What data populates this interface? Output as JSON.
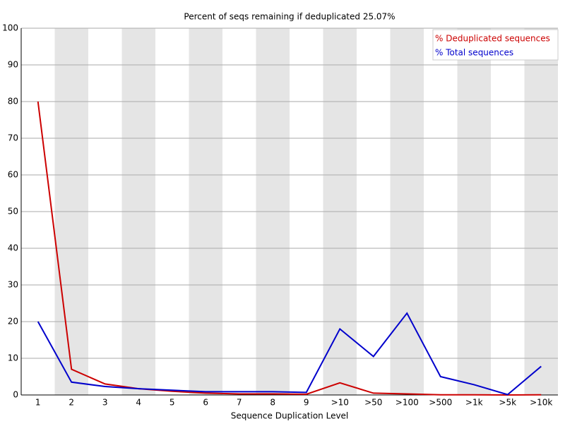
{
  "chart_data": {
    "type": "line",
    "title": "Percent of seqs remaining if deduplicated 25.07%",
    "xlabel": "Sequence Duplication Level",
    "categories": [
      "1",
      "2",
      "3",
      "4",
      "5",
      "6",
      "7",
      "8",
      "9",
      ">10",
      ">50",
      ">100",
      ">500",
      ">1k",
      ">5k",
      ">10k"
    ],
    "series": [
      {
        "name": "% Deduplicated sequences",
        "color": "#cc0000",
        "values": [
          80,
          7,
          3,
          1.7,
          1,
          0.5,
          0.3,
          0.3,
          0.2,
          3.3,
          0.5,
          0.3,
          0.05,
          0.05,
          0.01,
          0.05
        ]
      },
      {
        "name": "% Total sequences",
        "color": "#0000cc",
        "values": [
          20,
          3.5,
          2.3,
          1.7,
          1.3,
          0.9,
          0.9,
          0.9,
          0.7,
          18,
          10.5,
          22.3,
          5,
          2.8,
          0.1,
          7.8
        ]
      }
    ],
    "ylim": [
      0,
      100
    ],
    "yticks": [
      0,
      10,
      20,
      30,
      40,
      50,
      60,
      70,
      80,
      90,
      100
    ],
    "grid": true,
    "legend": "upper right"
  }
}
